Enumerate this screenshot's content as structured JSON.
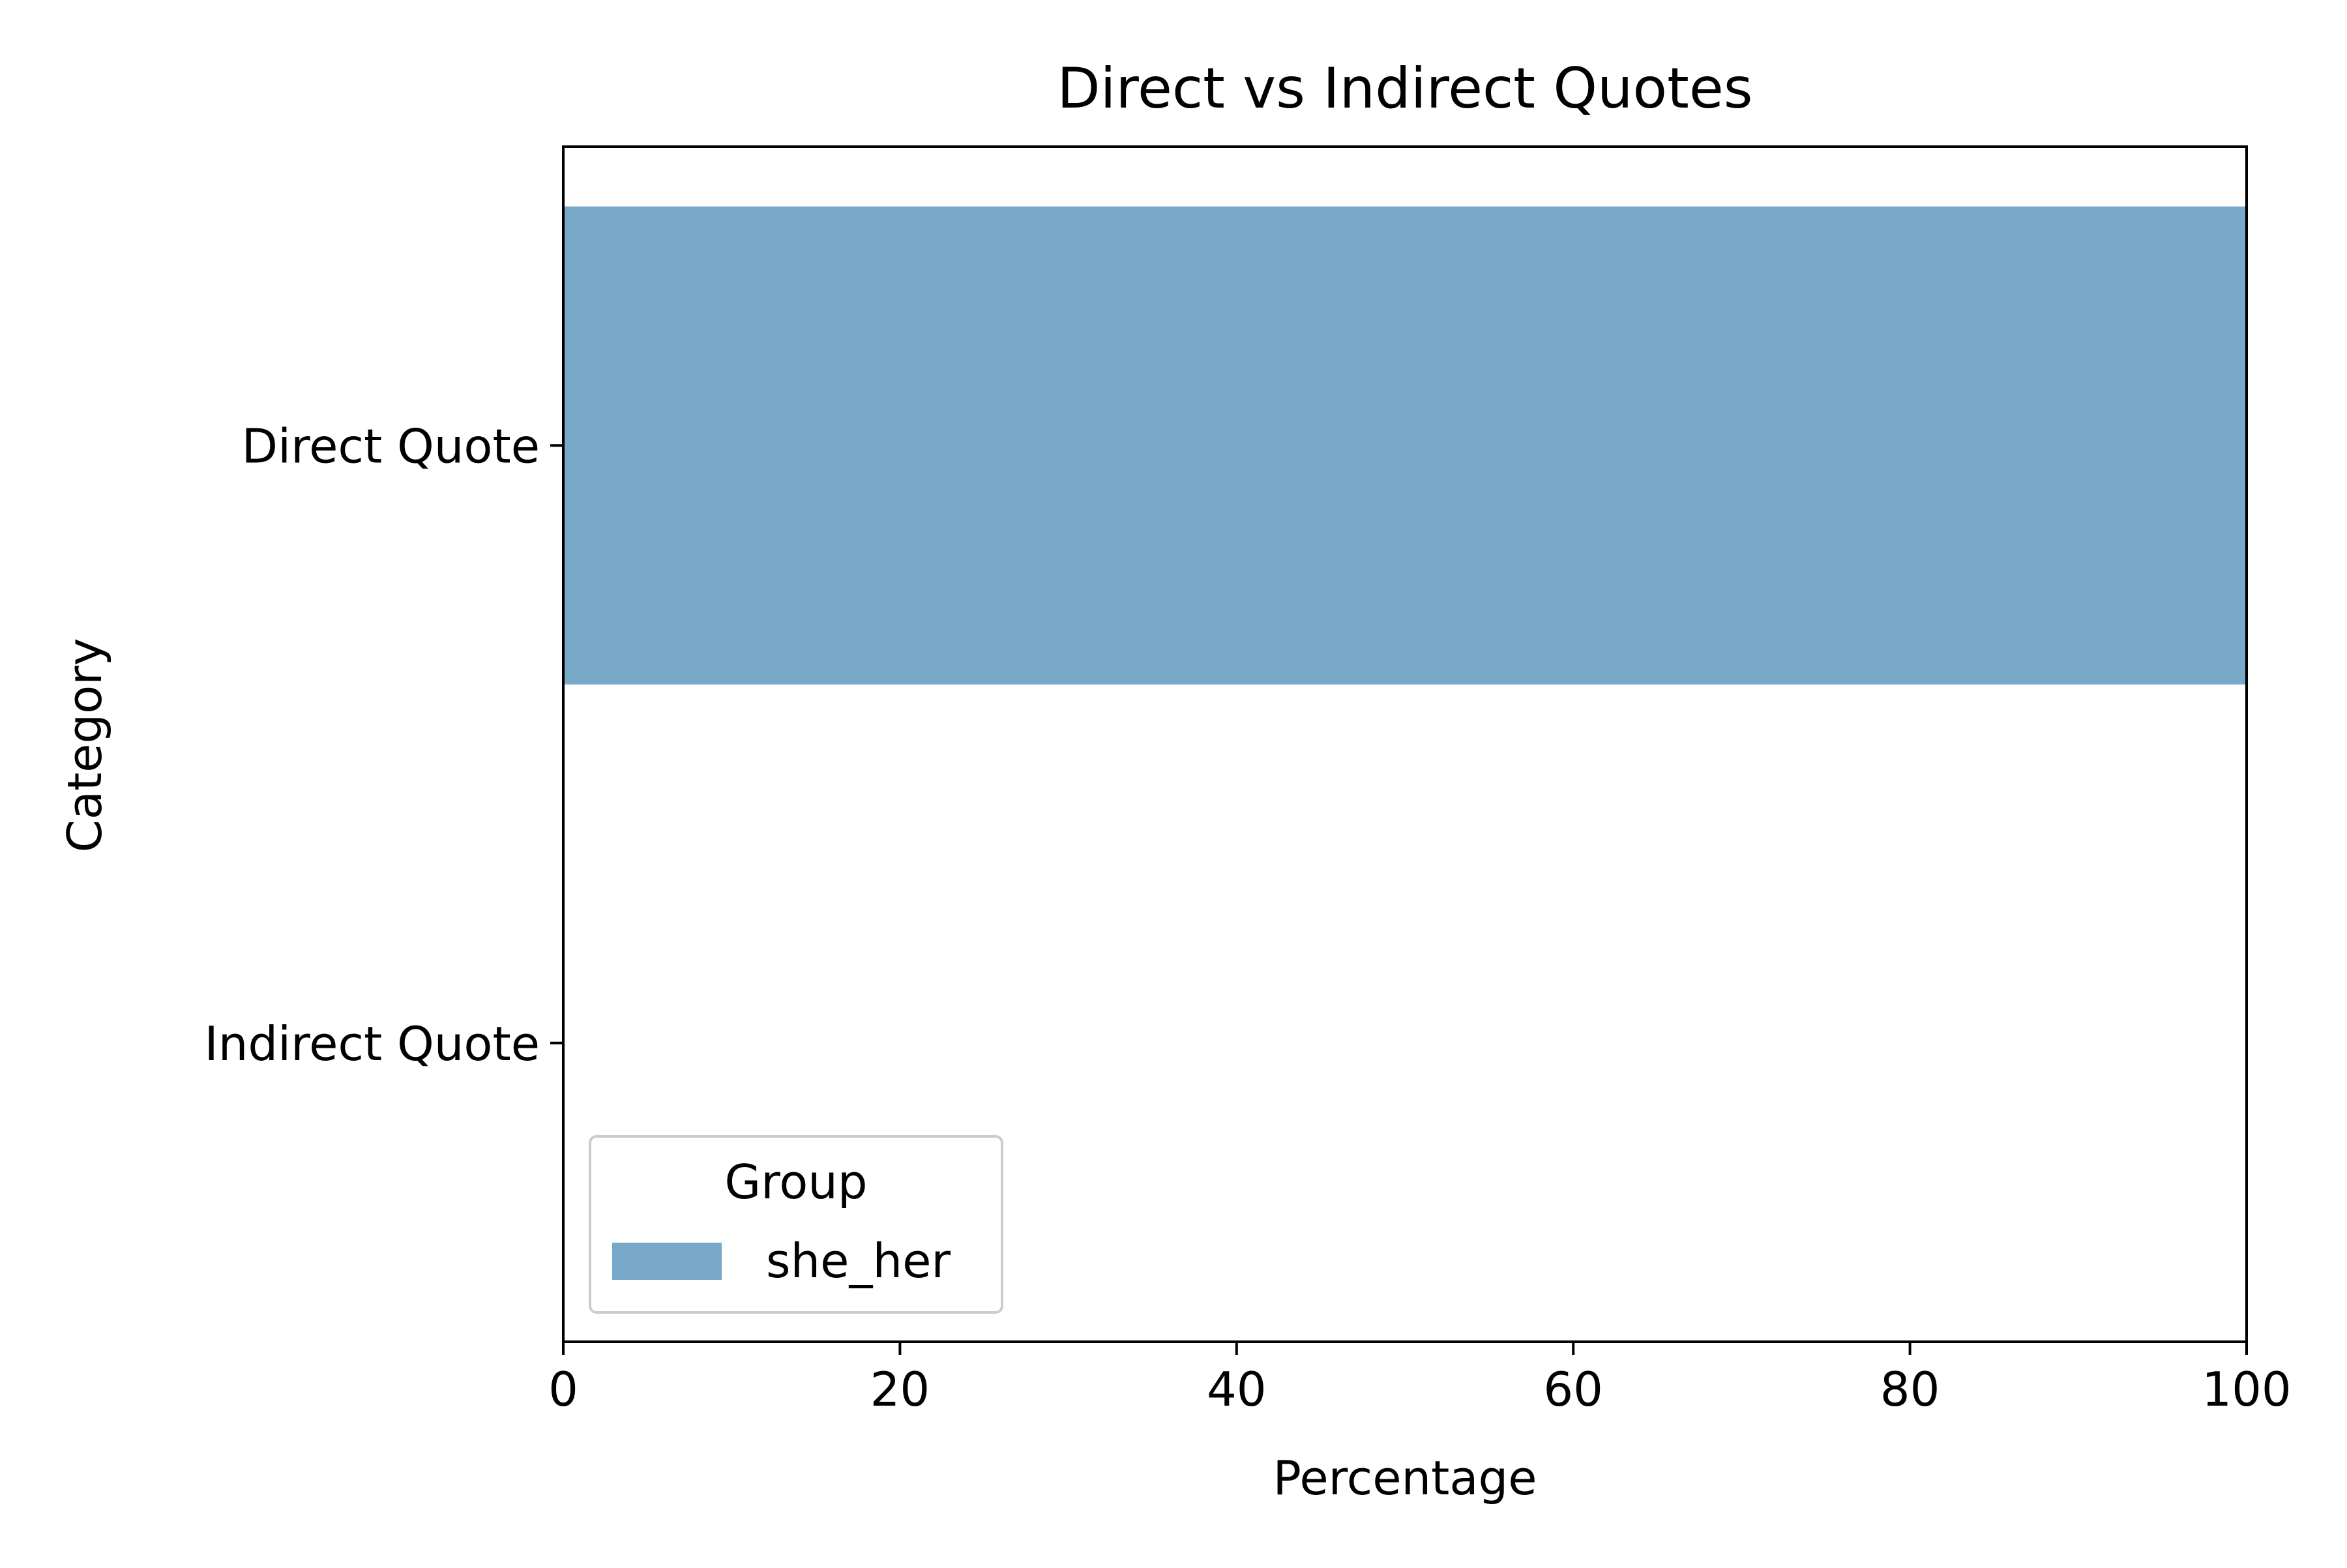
{
  "chart_data": {
    "type": "bar",
    "orientation": "horizontal",
    "title": "Direct vs Indirect Quotes",
    "xlabel": "Percentage",
    "ylabel": "Category",
    "categories": [
      "Direct Quote",
      "Indirect Quote"
    ],
    "series": [
      {
        "name": "she_her",
        "values": [
          100,
          0
        ],
        "color": "#79a9c8"
      }
    ],
    "xlim": [
      0,
      100
    ],
    "xticks": [
      0,
      20,
      40,
      60,
      80,
      100
    ],
    "grid": false,
    "legend": {
      "title": "Group",
      "position": "lower-left"
    }
  }
}
